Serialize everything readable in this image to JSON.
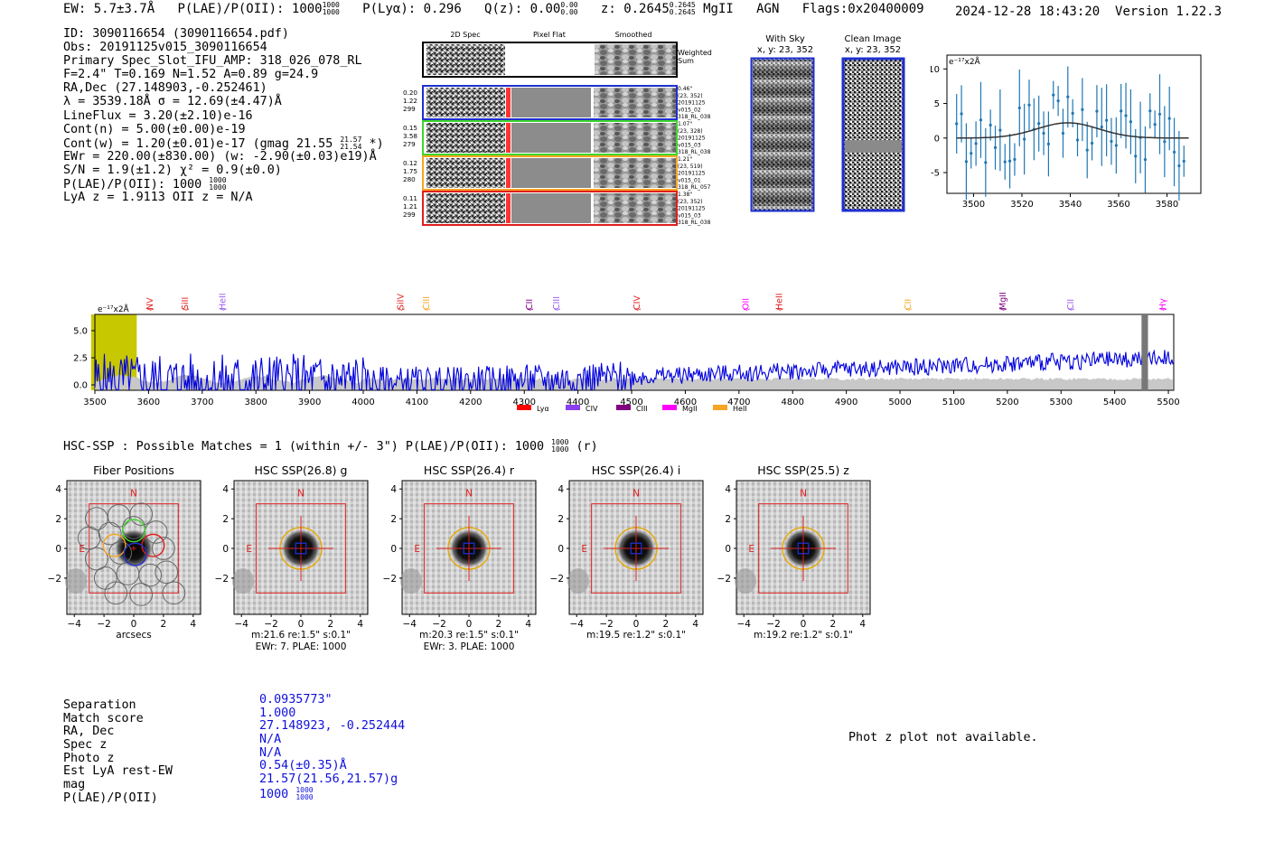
{
  "header": {
    "ew": "EW: 5.7±3.7Å",
    "plae": "P(LAE)/P(OII): 1000",
    "plae_hi": "1000",
    "plae_lo": "1000",
    "plya": "P(Lyα): 0.296",
    "qz": "Q(z): 0.00",
    "qz_hi": "0.00",
    "qz_lo": "0.00",
    "z": "z: 0.2645",
    "z_hi": "0.2645",
    "z_lo": "0.2645",
    "line": "MgII",
    "agn": "AGN",
    "flags": "Flags:0x20400009",
    "datetime": "2024-12-28 18:43:20",
    "version": "Version 1.22.3"
  },
  "info": {
    "id": "ID: 3090116654 (3090116654.pdf)",
    "obs": "Obs: 20191125v015_3090116654",
    "primary": "Primary Spec_Slot_IFU_AMP: 318_026_078_RL",
    "fline": "F=2.4\"  T=0.169  N=1.52  A=0.89  g=24.9",
    "radec": "RA,Dec (27.148903,-0.252461)",
    "lambda": "λ = 3539.18Å  σ = 12.69(±4.47)Å",
    "lineflux": "LineFlux = 3.20(±2.10)e-16",
    "contn": "Cont(n) = 5.00(±0.00)e-19",
    "contw": "Cont(w) = 1.20(±0.01)e-17 (gmag 21.55",
    "contw_hi": "21.57",
    "contw_lo": "21.54",
    "contw_tail": "*)",
    "ewr": "EWr = 220.00(±830.00) (w: -2.90(±0.03)e19)Å",
    "sn": "S/N = 1.9(±1.2)  χ² = 0.9(±0.0)",
    "plae": "P(LAE)/P(OII): 1000",
    "plae_hi": "1000",
    "plae_lo": "1000",
    "lya": "LyA z = 1.9113  OII z = N/A"
  },
  "cutouts": {
    "col_2d": "2D Spec",
    "col_flat": "Pixel Flat",
    "col_smooth": "Smoothed",
    "weighted": "Weighted",
    "sum": "Sum",
    "rows": [
      {
        "w1": "0.20",
        "w2": "1.22",
        "w3": "299",
        "r1": "0.46\"",
        "r2": "(23, 352)",
        "r3": "20191125",
        "r4": "v015_02",
        "r5": "318_RL_038",
        "color": "#1e2fd0"
      },
      {
        "w1": "0.15",
        "w2": "3.58",
        "w3": "279",
        "r1": "1.07\"",
        "r2": "(23, 328)",
        "r3": "20191125",
        "r4": "v015_03",
        "r5": "318_RL_038",
        "color": "#3ed62a"
      },
      {
        "w1": "0.12",
        "w2": "1.75",
        "w3": "280",
        "r1": "1.21\"",
        "r2": "(23, 519)",
        "r3": "20191125",
        "r4": "v015_01",
        "r5": "318_RL_057",
        "color": "#f5a623"
      },
      {
        "w1": "0.11",
        "w2": "1.21",
        "w3": "299",
        "r1": "1.38\"",
        "r2": "(23, 352)",
        "r3": "20191125",
        "r4": "v015_03",
        "r5": "318_RL_038",
        "color": "#e01e1e"
      }
    ],
    "with_sky": "With Sky",
    "with_sky_xy": "x, y: 23, 352",
    "clean": "Clean Image",
    "clean_xy": "x, y: 23, 352"
  },
  "fit_plot": {
    "unit": "e⁻¹⁷x2Å",
    "yticks": [
      "10",
      "5",
      "0",
      "-5"
    ],
    "xticks": [
      "3500",
      "3520",
      "3540",
      "3560",
      "3580"
    ]
  },
  "chart_data": {
    "type": "line",
    "title": "",
    "unit_label": "e⁻¹⁷x2Å",
    "xlim": [
      3500,
      5510
    ],
    "ylim": [
      -0.5,
      6.5
    ],
    "xticks": [
      "3500",
      "3600",
      "3700",
      "3800",
      "3900",
      "4000",
      "4100",
      "4200",
      "4300",
      "4400",
      "4500",
      "4600",
      "4700",
      "4800",
      "4900",
      "5000",
      "5100",
      "5200",
      "5300",
      "5400",
      "5500"
    ],
    "yticks": [
      "5.0",
      "2.5",
      "0.0"
    ],
    "series": [
      {
        "name": "flux",
        "color": "#0000dd",
        "baseline_start": 0.0,
        "baseline_end": 2.5
      },
      {
        "name": "error",
        "color": "#c8c8c8",
        "level": 0.3
      }
    ],
    "lines": [
      {
        "name": "NV",
        "x": 3603,
        "color": "#e01e1e"
      },
      {
        "name": "SiII",
        "x": 3668,
        "color": "#e01e1e"
      },
      {
        "name": "HeII",
        "x": 3738,
        "color": "#9a5cf0"
      },
      {
        "name": "SiIV",
        "x": 4070,
        "color": "#e01e1e"
      },
      {
        "name": "CIII",
        "x": 4118,
        "color": "#f5a623"
      },
      {
        "name": "CII",
        "x": 4310,
        "color": "#800080"
      },
      {
        "name": "CIII",
        "x": 4360,
        "color": "#9a5cf0"
      },
      {
        "name": "CIV",
        "x": 4510,
        "color": "#e01e1e"
      },
      {
        "name": "OII",
        "x": 4713,
        "color": "#ff00ff"
      },
      {
        "name": "HeII",
        "x": 4775,
        "color": "#e01e1e"
      },
      {
        "name": "CII",
        "x": 5015,
        "color": "#f5a623"
      },
      {
        "name": "MgII",
        "x": 5192,
        "color": "#800080"
      },
      {
        "name": "CII",
        "x": 5318,
        "color": "#9a5cf0"
      },
      {
        "name": "Hγ",
        "x": 5490,
        "color": "#ff00ff"
      }
    ],
    "highlight_range": [
      3493,
      3578
    ],
    "legend": [
      {
        "name": "Lyα",
        "color": "#ff0000"
      },
      {
        "name": "CIV",
        "color": "#8a3ff0"
      },
      {
        "name": "CIII",
        "color": "#800080"
      },
      {
        "name": "MgII",
        "color": "#ff00ff"
      },
      {
        "name": "HeII",
        "color": "#f5a623"
      }
    ]
  },
  "hsc": {
    "head": "HSC-SSP : Possible Matches = 1 (within +/- 3\")  P(LAE)/P(OII): 1000",
    "head_hi": "1000",
    "head_lo": "1000",
    "head_tail": "(r)",
    "panels": [
      {
        "title": "Fiber Positions",
        "line1": "arcsecs",
        "line2": ""
      },
      {
        "title": "HSC SSP(26.8) g",
        "line1": "m:21.6  re:1.5\"  s:0.1\"",
        "line2": "EWr: 7. PLAE: 1000"
      },
      {
        "title": "HSC SSP(26.4) r",
        "line1": "m:20.3  re:1.5\"  s:0.1\"",
        "line2": "EWr: 3. PLAE: 1000"
      },
      {
        "title": "HSC SSP(26.4) i",
        "line1": "m:19.5  re:1.2\"  s:0.1\"",
        "line2": ""
      },
      {
        "title": "HSC SSP(25.5) z",
        "line1": "m:19.2  re:1.2\"  s:0.1\"",
        "line2": ""
      }
    ],
    "axis_ticks": [
      "4",
      "2",
      "0",
      "−2"
    ],
    "xaxis_ticks": [
      "−4",
      "−2",
      "0",
      "2",
      "4"
    ],
    "north": "N",
    "east": "E"
  },
  "match": {
    "labels": [
      "Separation",
      "Match score",
      "RA, Dec",
      "Spec z",
      "Photo z",
      "Est LyA rest-EW",
      "mag",
      "P(LAE)/P(OII)"
    ],
    "values": [
      "0.0935773\"",
      "1.000",
      "27.148923, -0.252444",
      "N/A",
      "N/A",
      "0.54(±0.35)Å",
      "21.57(21.56,21.57)g",
      "1000"
    ],
    "plae_hi": "1000",
    "plae_lo": "1000"
  },
  "photz": "Phot z plot not available."
}
